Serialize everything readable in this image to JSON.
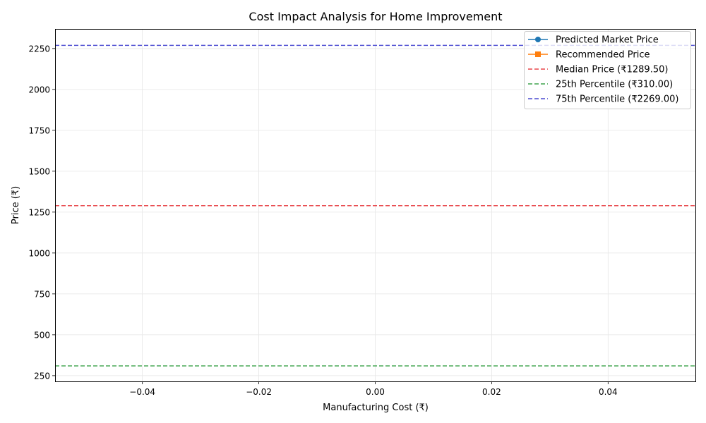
{
  "chart_data": {
    "type": "line",
    "title": "Cost Impact Analysis for Home Improvement",
    "xlabel": "Manufacturing Cost (₹)",
    "ylabel": "Price (₹)",
    "xlim": [
      -0.055,
      0.055
    ],
    "ylim": [
      215,
      2370
    ],
    "x_ticks": [
      -0.04,
      -0.02,
      0.0,
      0.02,
      0.04
    ],
    "x_tick_labels": [
      "−0.04",
      "−0.02",
      "0.00",
      "0.02",
      "0.04"
    ],
    "y_ticks": [
      250,
      500,
      750,
      1000,
      1250,
      1500,
      1750,
      2000,
      2250
    ],
    "y_tick_labels": [
      "250",
      "500",
      "750",
      "1000",
      "1250",
      "1500",
      "1750",
      "2000",
      "2250"
    ],
    "grid": true,
    "legend_position": "top-right",
    "series": [
      {
        "name": "Predicted Market Price",
        "kind": "line",
        "marker": "circle",
        "color": "#1f77b4",
        "points": []
      },
      {
        "name": "Recommended Price",
        "kind": "line",
        "marker": "square",
        "color": "#ff7f0e",
        "points": []
      }
    ],
    "reference_lines": [
      {
        "name": "Median Price (₹1289.50)",
        "y": 1289.5,
        "color": "#e8464a",
        "dash": true
      },
      {
        "name": "25th Percentile (₹310.00)",
        "y": 310.0,
        "color": "#3fa34d",
        "dash": true
      },
      {
        "name": "75th Percentile (₹2269.00)",
        "y": 2269.0,
        "color": "#4b4bd1",
        "dash": true
      }
    ]
  }
}
